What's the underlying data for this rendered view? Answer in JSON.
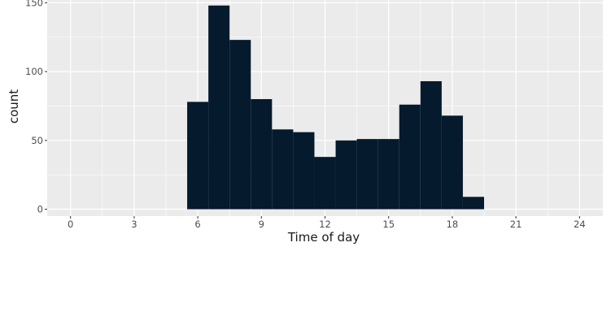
{
  "chart_data": {
    "type": "bar",
    "subtype": "histogram",
    "xlabel": "Time of day",
    "ylabel": "count",
    "xlim": [
      -1.1,
      25.1
    ],
    "ylim": [
      -5,
      152
    ],
    "x_ticks": [
      0,
      3,
      6,
      9,
      12,
      15,
      18,
      21,
      24
    ],
    "y_ticks": [
      0,
      50,
      100,
      150
    ],
    "bin_width": 1,
    "bins": [
      {
        "start": 5.5,
        "end": 6.5,
        "count": 78
      },
      {
        "start": 6.5,
        "end": 7.5,
        "count": 148
      },
      {
        "start": 7.5,
        "end": 8.5,
        "count": 123
      },
      {
        "start": 8.5,
        "end": 9.5,
        "count": 80
      },
      {
        "start": 9.5,
        "end": 10.5,
        "count": 58
      },
      {
        "start": 10.5,
        "end": 11.5,
        "count": 56
      },
      {
        "start": 11.5,
        "end": 12.5,
        "count": 38
      },
      {
        "start": 12.5,
        "end": 13.5,
        "count": 50
      },
      {
        "start": 13.5,
        "end": 14.5,
        "count": 51
      },
      {
        "start": 14.5,
        "end": 15.5,
        "count": 51
      },
      {
        "start": 15.5,
        "end": 16.5,
        "count": 76
      },
      {
        "start": 16.5,
        "end": 17.5,
        "count": 93
      },
      {
        "start": 17.5,
        "end": 18.5,
        "count": 68
      },
      {
        "start": 18.5,
        "end": 19.5,
        "count": 9
      }
    ],
    "grid": true,
    "bar_color": "#061a2e",
    "panel_color": "#ebebeb",
    "grid_color": "#ffffff"
  }
}
